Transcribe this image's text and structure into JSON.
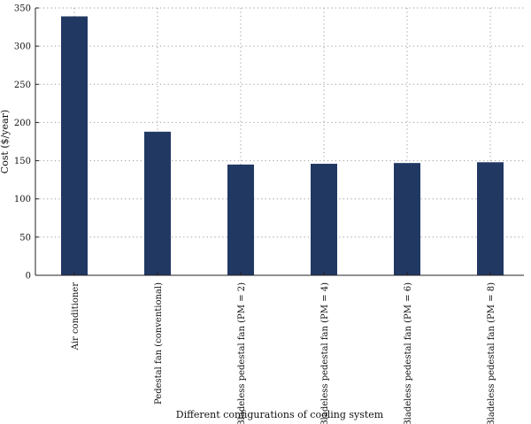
{
  "chart_data": {
    "type": "bar",
    "categories": [
      "Air conditioner",
      "Pedestal fan (conventional)",
      "Bladeless pedestal fan (PM = 2)",
      "Bladeless pedestal fan (PM = 4)",
      "Bladeless pedestal fan (PM = 6)",
      "Bladeless pedestal fan (PM = 8)"
    ],
    "values": [
      339,
      188,
      145,
      146,
      147,
      148
    ],
    "title": "",
    "xlabel": "Different configurations of cooling system",
    "ylabel": "Cost ($/year)",
    "ylim": [
      0,
      350
    ],
    "yticks": [
      0,
      50,
      100,
      150,
      200,
      250,
      300,
      350
    ],
    "grid": true,
    "bar_color": "#213863"
  }
}
